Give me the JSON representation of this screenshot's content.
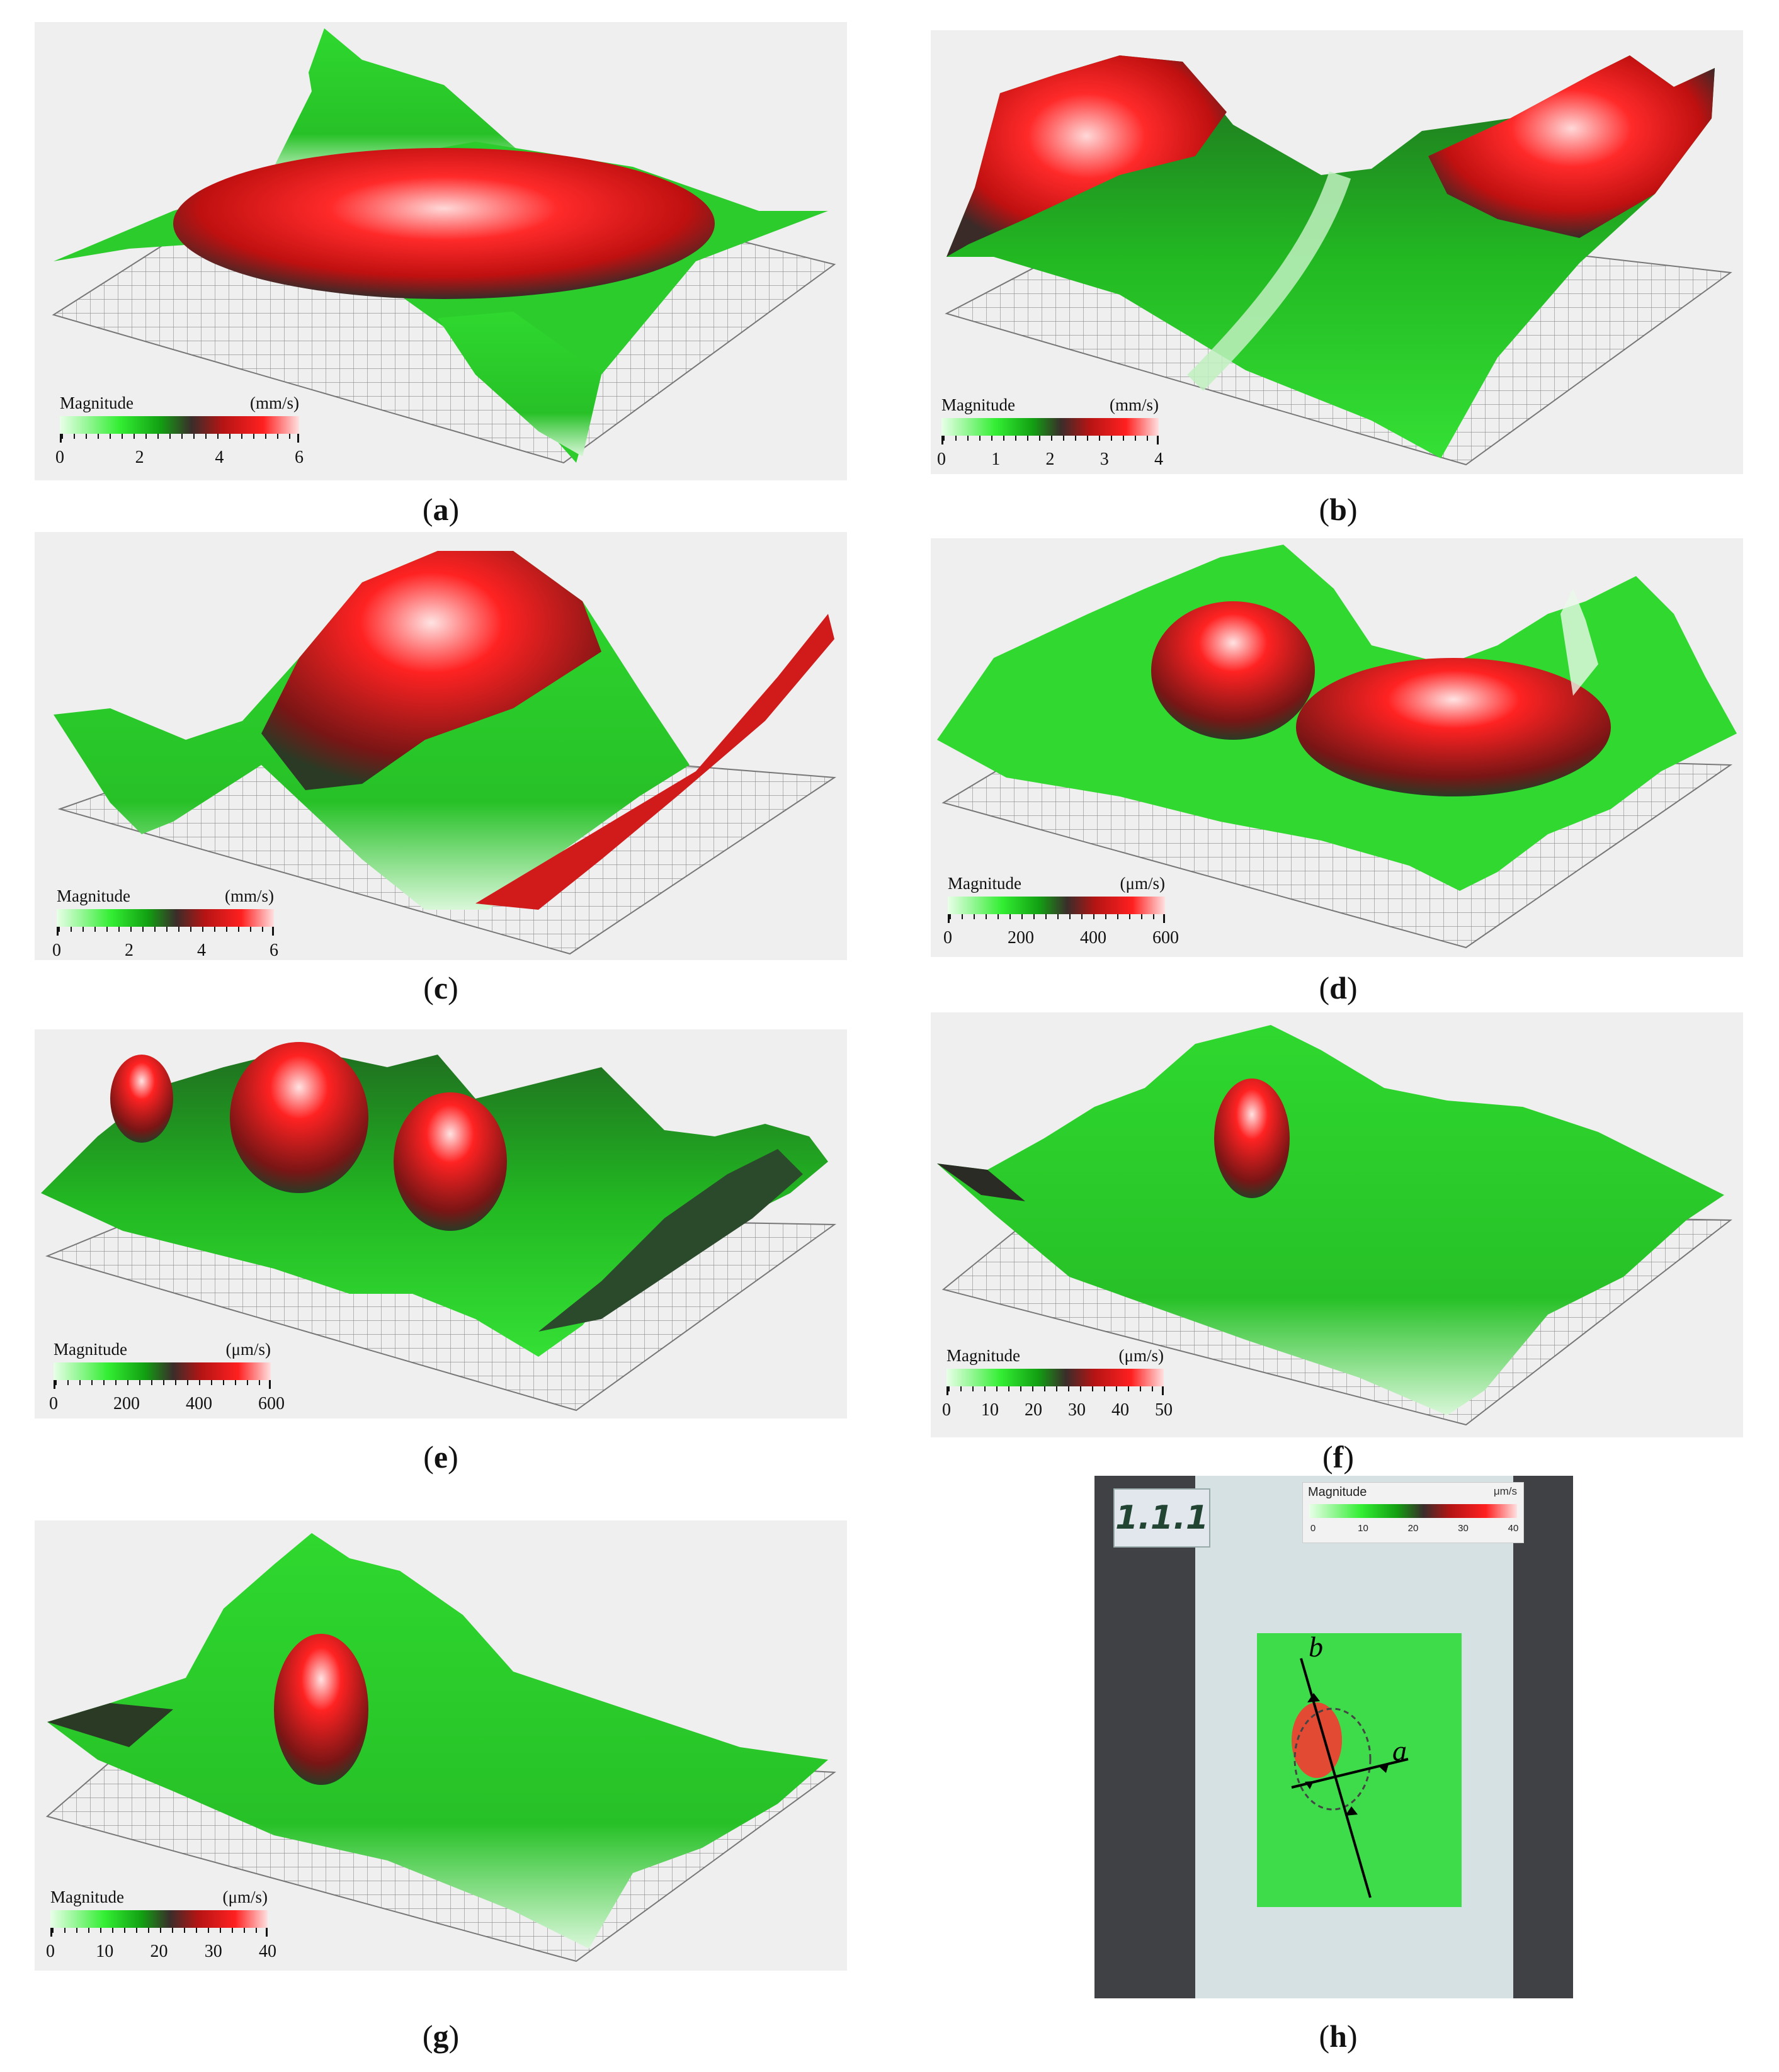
{
  "figure": {
    "panels": [
      {
        "id": "a",
        "caption_letter": "a",
        "legend_title": "Magnitude",
        "legend_unit": "(mm/s)",
        "legend_ticks": [
          "0",
          "2",
          "4",
          "6"
        ]
      },
      {
        "id": "b",
        "caption_letter": "b",
        "legend_title": "Magnitude",
        "legend_unit": "(mm/s)",
        "legend_ticks": [
          "0",
          "1",
          "2",
          "3",
          "4"
        ]
      },
      {
        "id": "c",
        "caption_letter": "c",
        "legend_title": "Magnitude",
        "legend_unit": "(mm/s)",
        "legend_ticks": [
          "0",
          "2",
          "4",
          "6"
        ]
      },
      {
        "id": "d",
        "caption_letter": "d",
        "legend_title": "Magnitude",
        "legend_unit": "(μm/s)",
        "legend_ticks": [
          "0",
          "200",
          "400",
          "600"
        ]
      },
      {
        "id": "e",
        "caption_letter": "e",
        "legend_title": "Magnitude",
        "legend_unit": "(μm/s)",
        "legend_ticks": [
          "0",
          "200",
          "400",
          "600"
        ]
      },
      {
        "id": "f",
        "caption_letter": "f",
        "legend_title": "Magnitude",
        "legend_unit": "(μm/s)",
        "legend_ticks": [
          "0",
          "10",
          "20",
          "30",
          "40",
          "50"
        ]
      },
      {
        "id": "g",
        "caption_letter": "g",
        "legend_title": "Magnitude",
        "legend_unit": "(μm/s)",
        "legend_ticks": [
          "0",
          "10",
          "20",
          "30",
          "40"
        ]
      }
    ],
    "photo": {
      "caption_letter": "h",
      "specimen_label": "1.1.1",
      "legend_title": "Magnitude",
      "legend_unit": "μm/s",
      "legend_ticks": [
        "0",
        "10",
        "20",
        "30",
        "40"
      ],
      "axis_label_a": "a",
      "axis_label_b": "b"
    }
  },
  "colors": {
    "low": "#e8ffe8",
    "green": "#33ee33",
    "dark": "#3a2d2a",
    "red": "#ff2020",
    "high": "#ffe0e0",
    "panel_background": "#efefef"
  }
}
